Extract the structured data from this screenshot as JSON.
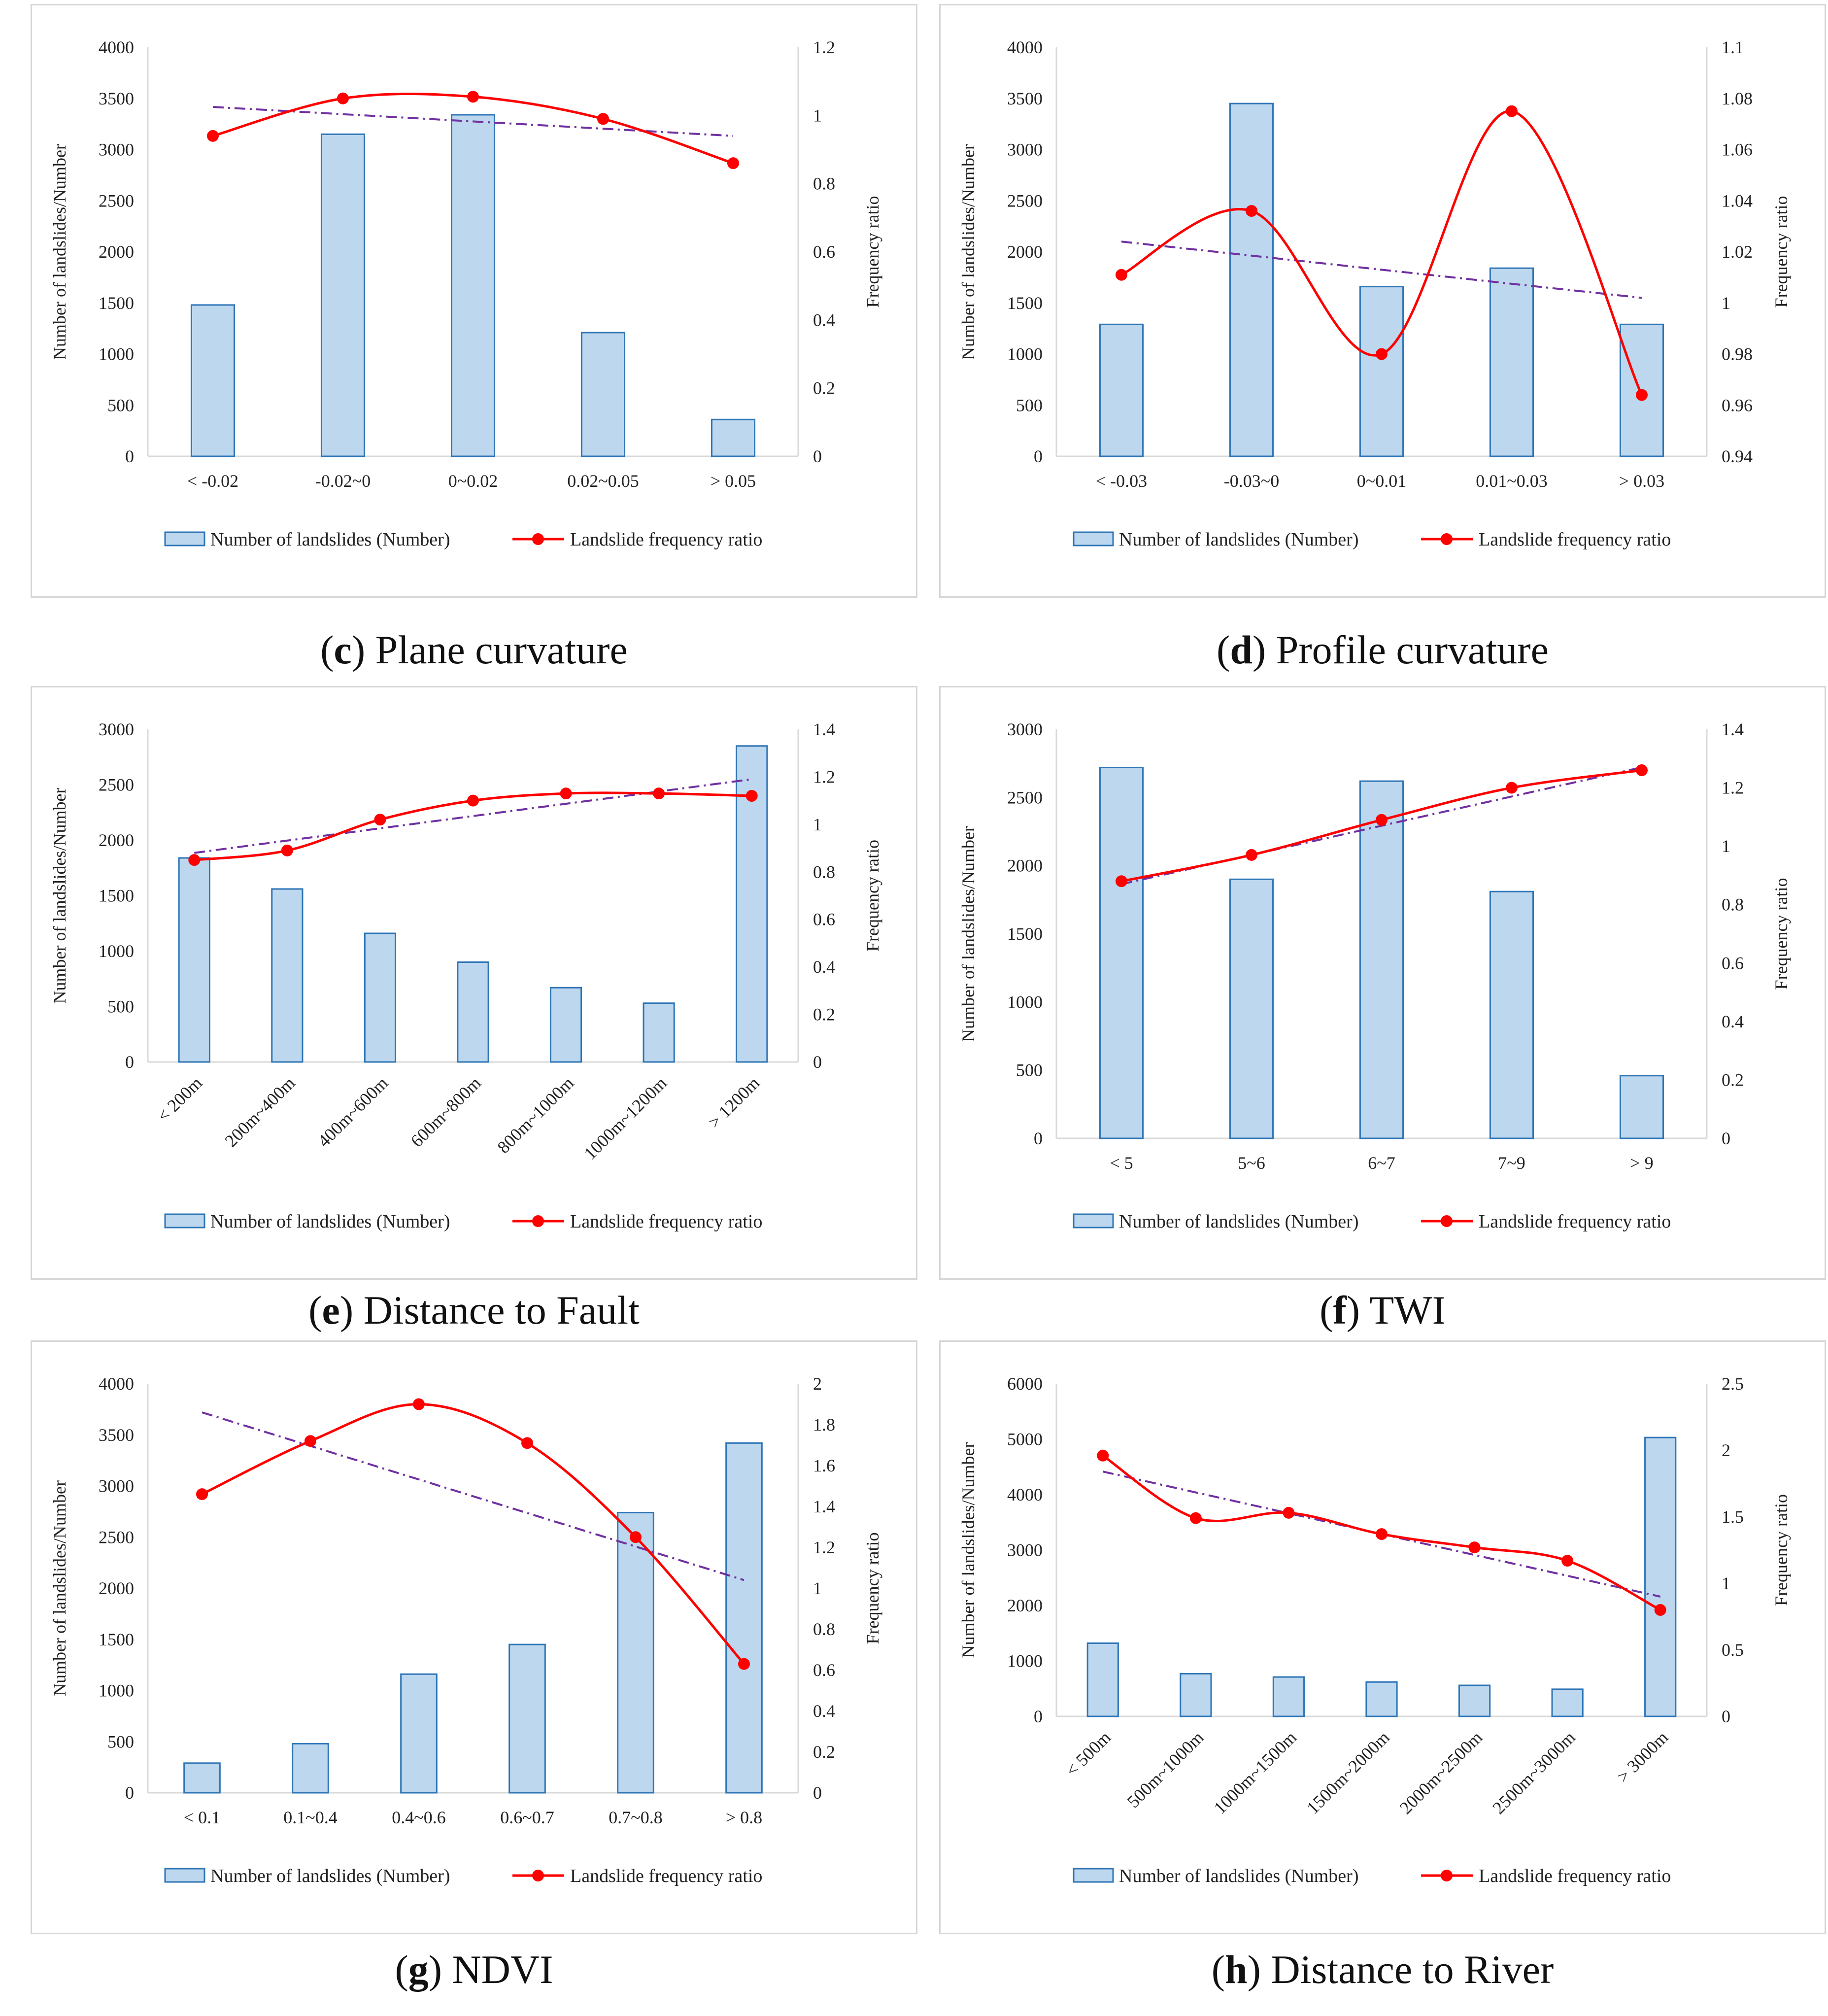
{
  "legend": {
    "bar_label": "Number of landslides (Number)",
    "line_label": "Landslide frequency ratio"
  },
  "colors": {
    "bar_fill": "#bdd7ee",
    "bar_stroke": "#2e75b6",
    "line": "#ff0000",
    "trend": "#7030a0",
    "grid_axis": "#d9d9d9"
  },
  "chart_data": [
    {
      "id": "c",
      "type": "bar+line",
      "caption_letter": "c",
      "caption_text": " Plane curvature",
      "ylabel": "Number of landslides/Number",
      "y2label": "Frequency ratio",
      "categories": [
        "< -0.02",
        "-0.02~0",
        "0~0.02",
        "0.02~0.05",
        "> 0.05"
      ],
      "bars": [
        1480,
        3150,
        3340,
        1210,
        360
      ],
      "ratio": [
        0.94,
        1.05,
        1.055,
        0.99,
        0.86
      ],
      "trend": [
        1.025,
        0.94
      ],
      "ylim": [
        0,
        4000
      ],
      "ystep": 500,
      "y2lim": [
        0,
        1.2
      ],
      "y2step": 0.2,
      "rotate_labels": false
    },
    {
      "id": "d",
      "type": "bar+line",
      "caption_letter": "d",
      "caption_text": " Profile curvature",
      "ylabel": "Number of landslides/Number",
      "y2label": "Frequency ratio",
      "categories": [
        "< -0.03",
        "-0.03~0",
        "0~0.01",
        "0.01~0.03",
        "> 0.03"
      ],
      "bars": [
        1290,
        3450,
        1660,
        1840,
        1290
      ],
      "ratio": [
        1.011,
        1.036,
        0.98,
        1.075,
        0.964
      ],
      "trend": [
        1.024,
        1.002
      ],
      "ylim": [
        0,
        4000
      ],
      "ystep": 500,
      "y2lim": [
        0.94,
        1.1
      ],
      "y2step": 0.02,
      "rotate_labels": false
    },
    {
      "id": "e",
      "type": "bar+line",
      "caption_letter": "e",
      "caption_text": " Distance to Fault",
      "ylabel": "Number of landslides/Number",
      "y2label": "Frequency ratio",
      "categories": [
        "< 200m",
        "200m~400m",
        "400m~600m",
        "600m~800m",
        "800m~1000m",
        "1000m~1200m",
        "> 1200m"
      ],
      "bars": [
        1840,
        1560,
        1160,
        900,
        670,
        530,
        2850
      ],
      "ratio": [
        0.85,
        0.89,
        1.02,
        1.1,
        1.13,
        1.13,
        1.12
      ],
      "trend": [
        0.88,
        1.19
      ],
      "ylim": [
        0,
        3000
      ],
      "ystep": 500,
      "y2lim": [
        0,
        1.4
      ],
      "y2step": 0.2,
      "rotate_labels": true
    },
    {
      "id": "f",
      "type": "bar+line",
      "caption_letter": "f",
      "caption_text": " TWI",
      "ylabel": "Number of landslides/Number",
      "y2label": "Frequency ratio",
      "categories": [
        "< 5",
        "5~6",
        "6~7",
        "7~9",
        "> 9"
      ],
      "bars": [
        2720,
        1900,
        2620,
        1810,
        460
      ],
      "ratio": [
        0.88,
        0.97,
        1.09,
        1.2,
        1.26
      ],
      "trend": [
        0.87,
        1.27
      ],
      "ylim": [
        0,
        3000
      ],
      "ystep": 500,
      "y2lim": [
        0,
        1.4
      ],
      "y2step": 0.2,
      "rotate_labels": false
    },
    {
      "id": "g",
      "type": "bar+line",
      "caption_letter": "g",
      "caption_text": " NDVI",
      "ylabel": "Number of landslides/Number",
      "y2label": "Frequency ratio",
      "categories": [
        "< 0.1",
        "0.1~0.4",
        "0.4~0.6",
        "0.6~0.7",
        "0.7~0.8",
        "> 0.8"
      ],
      "bars": [
        290,
        480,
        1160,
        1450,
        2740,
        3420
      ],
      "ratio": [
        1.46,
        1.72,
        1.9,
        1.71,
        1.25,
        0.63
      ],
      "trend": [
        1.86,
        1.04
      ],
      "ylim": [
        0,
        4000
      ],
      "ystep": 500,
      "y2lim": [
        0,
        2
      ],
      "y2step": 0.2,
      "rotate_labels": false
    },
    {
      "id": "h",
      "type": "bar+line",
      "caption_letter": "h",
      "caption_text": " Distance to River",
      "ylabel": "Number of landslides/Number",
      "y2label": "Frequency ratio",
      "categories": [
        "< 500m",
        "500m~1000m",
        "1000m~1500m",
        "1500m~2000m",
        "2000m~2500m",
        "2500m~3000m",
        "> 3000m"
      ],
      "bars": [
        1320,
        770,
        710,
        620,
        560,
        490,
        5030
      ],
      "ratio": [
        1.96,
        1.49,
        1.53,
        1.37,
        1.27,
        1.17,
        0.8
      ],
      "trend": [
        1.84,
        0.9
      ],
      "ylim": [
        0,
        6000
      ],
      "ystep": 1000,
      "y2lim": [
        0,
        2.5
      ],
      "y2step": 0.5,
      "rotate_labels": true
    }
  ]
}
